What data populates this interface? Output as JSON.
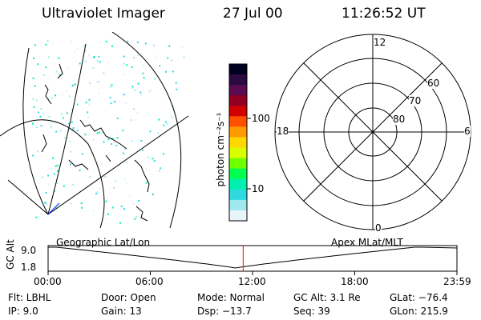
{
  "header": {
    "instrument": "Ultraviolet Imager",
    "date": "27 Jul 00",
    "time": "11:26:52 UT"
  },
  "colorbar": {
    "unit_label": "photon cm⁻²s⁻¹",
    "tick_labels": [
      "100",
      "10"
    ]
  },
  "polar_plot": {
    "mlt_labels": [
      "12",
      "18",
      "6",
      "0"
    ],
    "lat_labels": [
      "60",
      "70",
      "80"
    ]
  },
  "timeline": {
    "left_title": "Geographic Lat/Lon",
    "right_title": "Apex MLat/MLT",
    "axis_title": "GC Alt",
    "y_ticks": [
      "9.0",
      "1.8"
    ],
    "x_ticks": [
      "00:00",
      "06:00",
      "12:00",
      "18:00",
      "23:59"
    ],
    "current_time_marker_hours": 11.45,
    "marker_color": "#ff0000"
  },
  "info": {
    "flt": "Flt:  LBHL",
    "ip": "IP:  9.0",
    "door": "Door:  Open",
    "gain": "Gain:  13",
    "mode": "Mode:  Normal",
    "dsp": "Dsp:   −13.7",
    "gcalt": "GC Alt:  3.1 Re",
    "seq": "Seq:  39",
    "glat": "GLat:  −76.4",
    "glon": "GLon:  215.9"
  },
  "colors": {
    "scale": [
      "#000020",
      "#2a0a40",
      "#5a0a50",
      "#900020",
      "#d00000",
      "#ff5000",
      "#ff9a00",
      "#ffd800",
      "#d8ff00",
      "#70ff00",
      "#00ff50",
      "#00f0b0",
      "#30d8e0",
      "#a0e8f0",
      "#e8f4f8"
    ]
  }
}
